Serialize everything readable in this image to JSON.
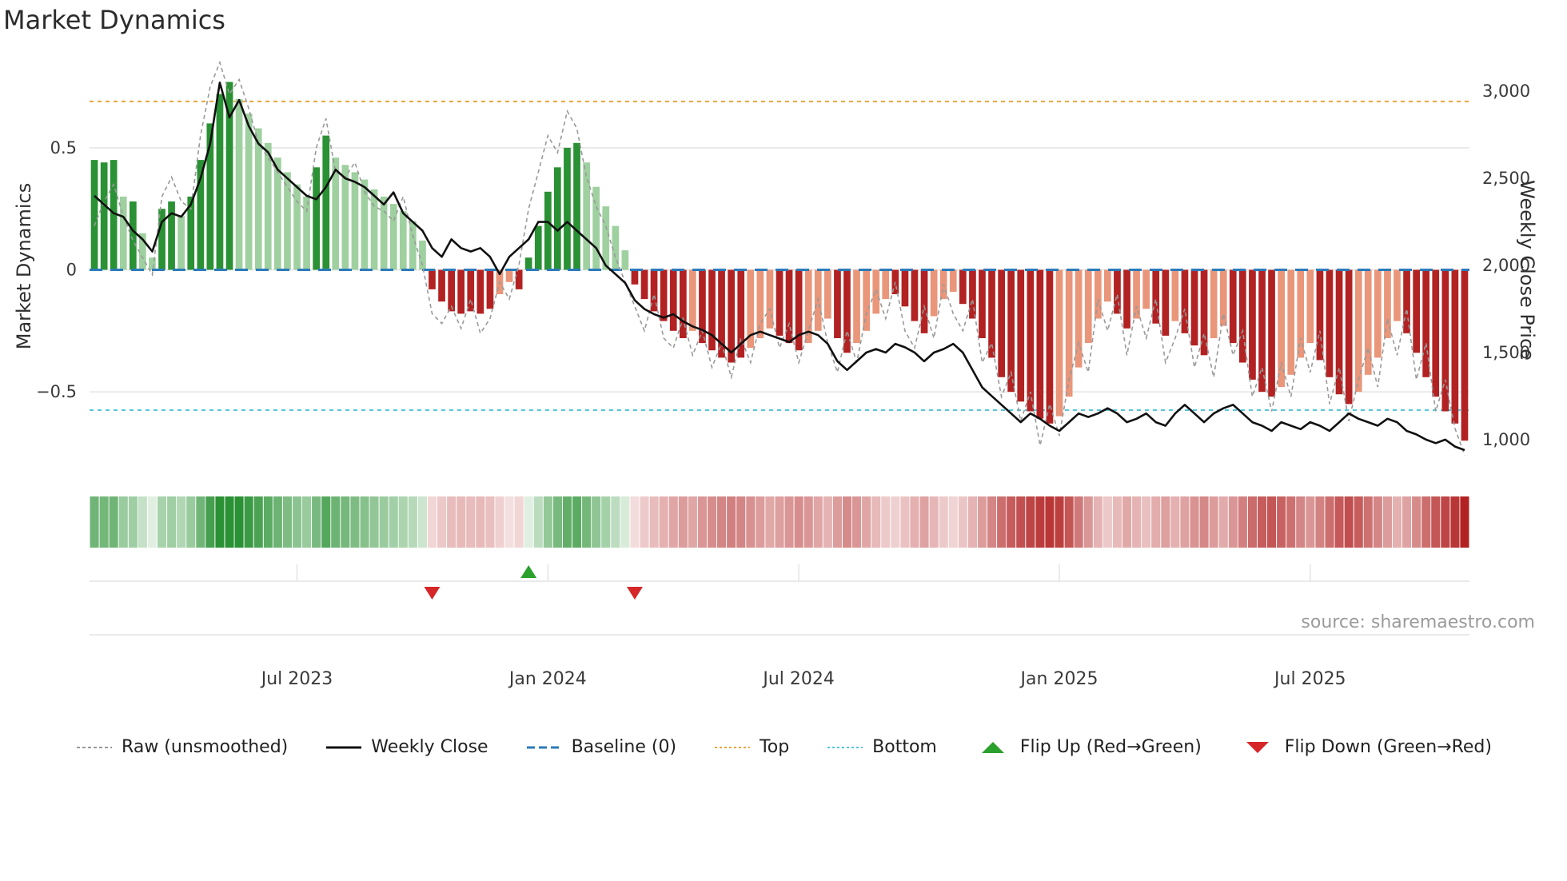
{
  "title": "Market Dynamics",
  "source": "source: sharemaestro.com",
  "axes": {
    "left_label": "Market Dynamics",
    "right_label": "Weekly Close Price"
  },
  "colors": {
    "bar_green_dark": "#2a9134",
    "bar_green_light": "#9fd0a0",
    "bar_red_dark": "#b22222",
    "bar_red_light": "#e9967a",
    "baseline": "#2b7bba",
    "top_line": "#e8a33d",
    "bottom_line": "#52c7de",
    "raw_line": "#999999",
    "close_line": "#111111",
    "grid": "#e4e4e4",
    "flip_up": "#2ca02c",
    "flip_down": "#d62728"
  },
  "legend": {
    "items": [
      {
        "label": "Raw (unsmoothed)",
        "icon": "line",
        "color": "#999999",
        "dash": "4 3",
        "width": 2
      },
      {
        "label": "Weekly Close",
        "icon": "line",
        "color": "#111111",
        "dash": "",
        "width": 3
      },
      {
        "label": "Baseline (0)",
        "icon": "line",
        "color": "#2b7bba",
        "dash": "10 5",
        "width": 3
      },
      {
        "label": "Top",
        "icon": "line",
        "color": "#e8a33d",
        "dash": "3 3",
        "width": 2
      },
      {
        "label": "Bottom",
        "icon": "line",
        "color": "#52c7de",
        "dash": "3 3",
        "width": 2
      },
      {
        "label": "Flip Up (Red→Green)",
        "icon": "triangle-up",
        "color": "#2ca02c"
      },
      {
        "label": "Flip Down (Green→Red)",
        "icon": "triangle-down",
        "color": "#d62728"
      }
    ]
  },
  "chart_data": {
    "type": "bar+line",
    "n_points": 143,
    "frequency": "weekly",
    "left_ylim": [
      -0.86,
      0.86
    ],
    "right_ylim": [
      770,
      3180
    ],
    "baseline": 0,
    "top_level": 0.69,
    "bottom_level": -0.575,
    "left_ticks": [
      {
        "label": "0.5",
        "value": 0.5
      },
      {
        "label": "0",
        "value": 0
      },
      {
        "label": "−0.5",
        "value": -0.5
      }
    ],
    "right_ticks": [
      {
        "label": "3,000",
        "value": 3000
      },
      {
        "label": "2,500",
        "value": 2500
      },
      {
        "label": "2,000",
        "value": 2000
      },
      {
        "label": "1,500",
        "value": 1500
      },
      {
        "label": "1,000",
        "value": 1000
      }
    ],
    "x_ticks": [
      {
        "label": "Jul 2023",
        "index": 21
      },
      {
        "label": "Jan 2024",
        "index": 47
      },
      {
        "label": "Jul 2024",
        "index": 73
      },
      {
        "label": "Jan 2025",
        "index": 100
      },
      {
        "label": "Jul 2025",
        "index": 126
      }
    ],
    "series": {
      "bars": {
        "name": "Market Dynamics (smoothed)",
        "axis": "left",
        "values": [
          0.45,
          0.44,
          0.45,
          0.3,
          0.28,
          0.15,
          0.05,
          0.25,
          0.28,
          0.22,
          0.3,
          0.45,
          0.6,
          0.72,
          0.77,
          0.7,
          0.64,
          0.58,
          0.52,
          0.46,
          0.4,
          0.35,
          0.3,
          0.42,
          0.55,
          0.46,
          0.43,
          0.4,
          0.37,
          0.33,
          0.3,
          0.27,
          0.24,
          0.2,
          0.12,
          -0.08,
          -0.13,
          -0.17,
          -0.18,
          -0.17,
          -0.18,
          -0.16,
          -0.1,
          -0.05,
          -0.08,
          0.05,
          0.18,
          0.32,
          0.42,
          0.5,
          0.52,
          0.44,
          0.34,
          0.26,
          0.18,
          0.08,
          -0.06,
          -0.12,
          -0.17,
          -0.21,
          -0.25,
          -0.28,
          -0.25,
          -0.3,
          -0.33,
          -0.36,
          -0.38,
          -0.36,
          -0.32,
          -0.28,
          -0.24,
          -0.27,
          -0.3,
          -0.33,
          -0.3,
          -0.25,
          -0.2,
          -0.28,
          -0.34,
          -0.3,
          -0.25,
          -0.18,
          -0.12,
          -0.1,
          -0.15,
          -0.21,
          -0.26,
          -0.19,
          -0.12,
          -0.09,
          -0.14,
          -0.2,
          -0.28,
          -0.36,
          -0.44,
          -0.5,
          -0.54,
          -0.58,
          -0.61,
          -0.63,
          -0.6,
          -0.52,
          -0.4,
          -0.3,
          -0.2,
          -0.13,
          -0.18,
          -0.24,
          -0.2,
          -0.16,
          -0.22,
          -0.27,
          -0.21,
          -0.26,
          -0.31,
          -0.35,
          -0.28,
          -0.23,
          -0.3,
          -0.38,
          -0.45,
          -0.5,
          -0.52,
          -0.48,
          -0.43,
          -0.36,
          -0.3,
          -0.37,
          -0.44,
          -0.51,
          -0.55,
          -0.5,
          -0.43,
          -0.36,
          -0.28,
          -0.21,
          -0.26,
          -0.34,
          -0.44,
          -0.52,
          -0.58,
          -0.63,
          -0.7
        ]
      },
      "raw": {
        "name": "Raw (unsmoothed)",
        "axis": "left",
        "values": [
          0.18,
          0.28,
          0.35,
          0.22,
          0.12,
          0.05,
          -0.02,
          0.3,
          0.38,
          0.28,
          0.25,
          0.55,
          0.75,
          0.85,
          0.72,
          0.78,
          0.66,
          0.52,
          0.46,
          0.4,
          0.34,
          0.28,
          0.24,
          0.5,
          0.62,
          0.4,
          0.38,
          0.44,
          0.32,
          0.26,
          0.24,
          0.2,
          0.3,
          0.14,
          0.02,
          -0.18,
          -0.22,
          -0.15,
          -0.24,
          -0.12,
          -0.26,
          -0.2,
          -0.05,
          -0.12,
          0.02,
          0.25,
          0.4,
          0.55,
          0.48,
          0.65,
          0.58,
          0.38,
          0.26,
          0.18,
          0.05,
          -0.05,
          -0.15,
          -0.25,
          -0.1,
          -0.28,
          -0.32,
          -0.2,
          -0.35,
          -0.25,
          -0.4,
          -0.3,
          -0.44,
          -0.28,
          -0.38,
          -0.22,
          -0.16,
          -0.32,
          -0.22,
          -0.38,
          -0.25,
          -0.12,
          -0.3,
          -0.42,
          -0.25,
          -0.38,
          -0.18,
          -0.08,
          -0.2,
          -0.05,
          -0.25,
          -0.32,
          -0.15,
          -0.28,
          -0.06,
          -0.18,
          -0.25,
          -0.12,
          -0.38,
          -0.3,
          -0.52,
          -0.42,
          -0.62,
          -0.5,
          -0.72,
          -0.55,
          -0.68,
          -0.45,
          -0.3,
          -0.42,
          -0.12,
          -0.25,
          -0.1,
          -0.35,
          -0.15,
          -0.28,
          -0.12,
          -0.38,
          -0.28,
          -0.16,
          -0.4,
          -0.26,
          -0.44,
          -0.18,
          -0.35,
          -0.25,
          -0.52,
          -0.4,
          -0.58,
          -0.38,
          -0.52,
          -0.28,
          -0.42,
          -0.25,
          -0.55,
          -0.4,
          -0.62,
          -0.45,
          -0.32,
          -0.48,
          -0.2,
          -0.35,
          -0.16,
          -0.45,
          -0.3,
          -0.58,
          -0.45,
          -0.65,
          -0.76
        ]
      },
      "close": {
        "name": "Weekly Close",
        "axis": "right",
        "values": [
          2400,
          2350,
          2300,
          2280,
          2200,
          2150,
          2080,
          2250,
          2300,
          2280,
          2350,
          2500,
          2700,
          3050,
          2850,
          2950,
          2800,
          2700,
          2650,
          2550,
          2500,
          2450,
          2400,
          2380,
          2450,
          2550,
          2500,
          2480,
          2450,
          2400,
          2350,
          2420,
          2300,
          2250,
          2200,
          2100,
          2050,
          2150,
          2100,
          2080,
          2100,
          2050,
          1950,
          2050,
          2100,
          2150,
          2250,
          2250,
          2200,
          2250,
          2200,
          2150,
          2100,
          2000,
          1950,
          1900,
          1800,
          1750,
          1720,
          1700,
          1720,
          1680,
          1650,
          1630,
          1600,
          1550,
          1500,
          1550,
          1600,
          1620,
          1600,
          1580,
          1560,
          1600,
          1620,
          1600,
          1550,
          1450,
          1400,
          1450,
          1500,
          1520,
          1500,
          1550,
          1530,
          1500,
          1450,
          1500,
          1520,
          1550,
          1500,
          1400,
          1300,
          1250,
          1200,
          1150,
          1100,
          1150,
          1120,
          1080,
          1050,
          1100,
          1150,
          1130,
          1150,
          1180,
          1150,
          1100,
          1120,
          1150,
          1100,
          1080,
          1150,
          1200,
          1150,
          1100,
          1150,
          1180,
          1200,
          1150,
          1100,
          1080,
          1050,
          1100,
          1080,
          1060,
          1100,
          1080,
          1050,
          1100,
          1150,
          1120,
          1100,
          1080,
          1120,
          1100,
          1050,
          1030,
          1000,
          980,
          1000,
          960,
          940
        ]
      }
    },
    "flip_markers": [
      {
        "type": "down",
        "index": 35
      },
      {
        "type": "up",
        "index": 45
      },
      {
        "type": "down",
        "index": 56
      }
    ]
  }
}
